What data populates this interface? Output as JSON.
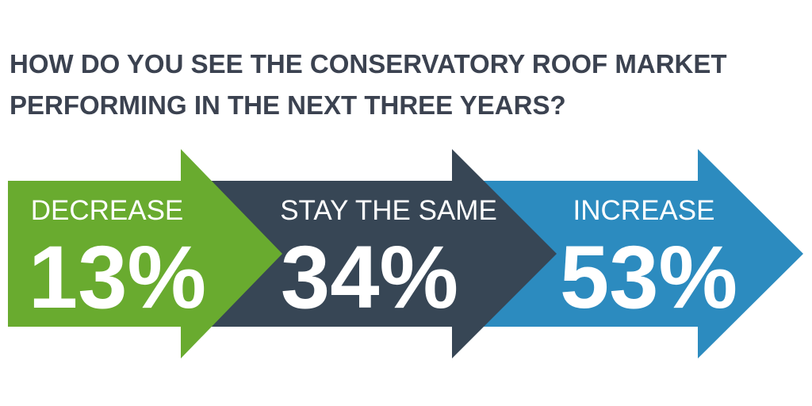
{
  "title_lines": [
    "HOW DO YOU SEE THE CONSERVATORY ROOF MARKET",
    "PERFORMING IN THE NEXT THREE YEARS?"
  ],
  "items": [
    {
      "label": "DECREASE",
      "value": "13%",
      "color": "#69ab2f"
    },
    {
      "label": "STAY THE SAME",
      "value": "34%",
      "color": "#374655"
    },
    {
      "label": "INCREASE",
      "value": "53%",
      "color": "#2c8bbf"
    }
  ]
}
